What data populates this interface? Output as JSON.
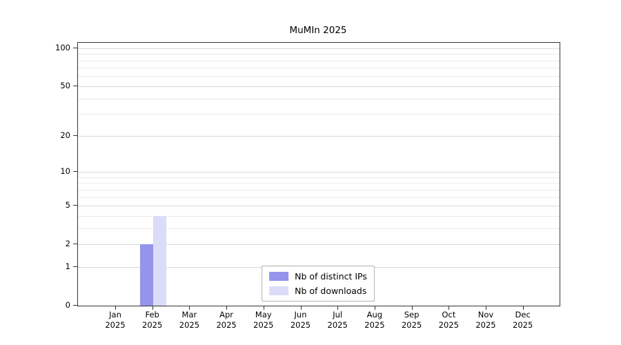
{
  "title": "MuMIn 2025",
  "year": "2025",
  "legend": {
    "items": [
      {
        "label": "Nb of distinct IPs",
        "color": "#9494ec"
      },
      {
        "label": "Nb of downloads",
        "color": "#dcdcf8"
      }
    ]
  },
  "chart_data": {
    "type": "bar",
    "title": "MuMIn 2025",
    "categories": [
      "Jan",
      "Feb",
      "Mar",
      "Apr",
      "May",
      "Jun",
      "Jul",
      "Aug",
      "Sep",
      "Oct",
      "Nov",
      "Dec"
    ],
    "category_year": "2025",
    "series": [
      {
        "name": "Nb of distinct IPs",
        "color": "#9494ec",
        "values": [
          0,
          2,
          0,
          0,
          0,
          0,
          0,
          0,
          0,
          0,
          0,
          0
        ]
      },
      {
        "name": "Nb of downloads",
        "color": "#dcdcf8",
        "values": [
          0,
          4,
          0,
          0,
          0,
          0,
          0,
          0,
          0,
          0,
          0,
          0
        ]
      }
    ],
    "xlabel": "",
    "ylabel": "",
    "yscale": "log1p",
    "ylim": [
      0,
      110
    ],
    "yticks": [
      0,
      1,
      2,
      5,
      10,
      20,
      50,
      100
    ],
    "grid_values": [
      1,
      2,
      3,
      4,
      5,
      6,
      7,
      8,
      9,
      10,
      20,
      30,
      40,
      50,
      60,
      70,
      80,
      90,
      100
    ],
    "grid": "horizontal",
    "legend_position": "lower-center-inside"
  }
}
